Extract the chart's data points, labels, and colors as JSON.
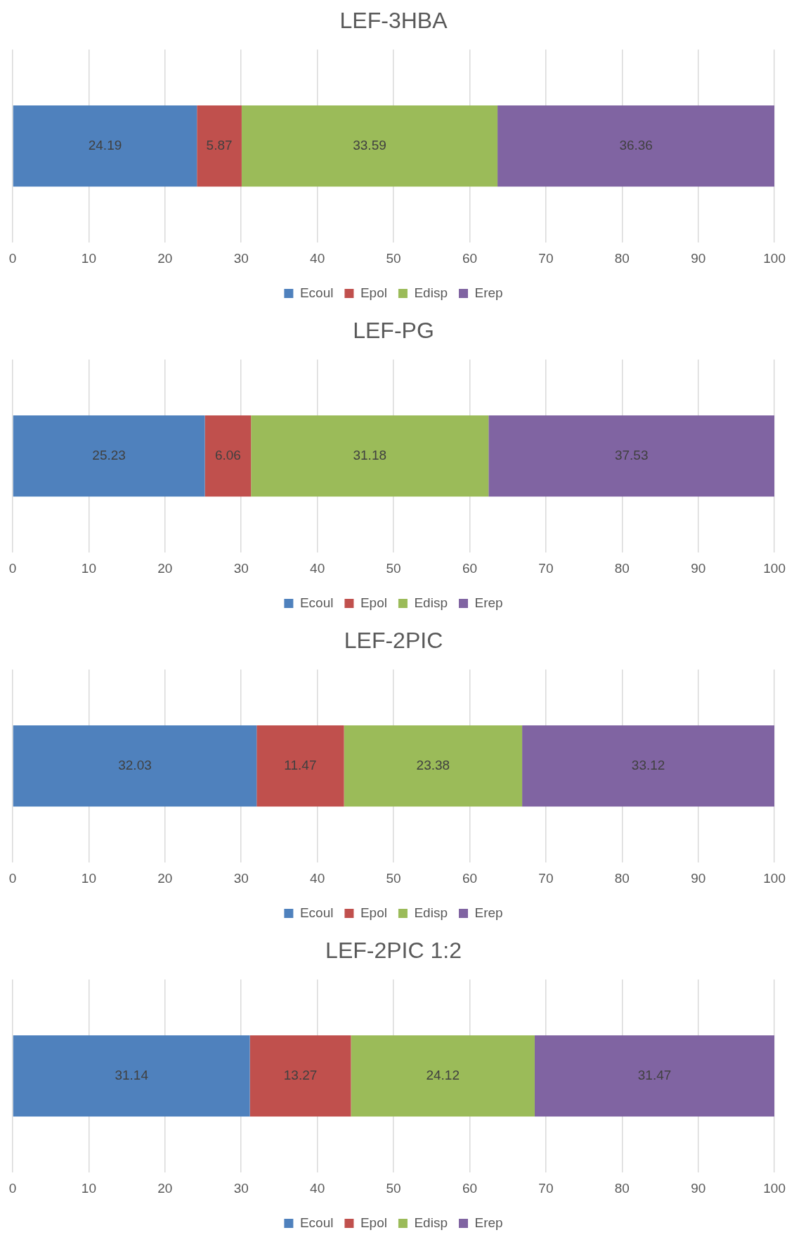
{
  "chart_data": [
    {
      "type": "bar",
      "title": "LEF-3HBA",
      "orientation": "horizontal",
      "stacked": true,
      "categories": [
        null
      ],
      "series": [
        {
          "name": "Ecoul",
          "color": "#4f81bd",
          "values": [
            24.19
          ]
        },
        {
          "name": "Epol",
          "color": "#c0504d",
          "values": [
            5.87
          ]
        },
        {
          "name": "Edisp",
          "color": "#9bbb59",
          "values": [
            33.59
          ]
        },
        {
          "name": "Erep",
          "color": "#8064a2",
          "values": [
            36.36
          ]
        }
      ],
      "xlim": [
        0,
        100
      ],
      "xticks": [
        0,
        10,
        20,
        30,
        40,
        50,
        60,
        70,
        80,
        90,
        100
      ],
      "grid": "x",
      "legend": "bottom",
      "data_labels": true
    },
    {
      "type": "bar",
      "title": "LEF-PG",
      "orientation": "horizontal",
      "stacked": true,
      "categories": [
        null
      ],
      "series": [
        {
          "name": "Ecoul",
          "color": "#4f81bd",
          "values": [
            25.23
          ]
        },
        {
          "name": "Epol",
          "color": "#c0504d",
          "values": [
            6.06
          ]
        },
        {
          "name": "Edisp",
          "color": "#9bbb59",
          "values": [
            31.18
          ]
        },
        {
          "name": "Erep",
          "color": "#8064a2",
          "values": [
            37.53
          ]
        }
      ],
      "xlim": [
        0,
        100
      ],
      "xticks": [
        0,
        10,
        20,
        30,
        40,
        50,
        60,
        70,
        80,
        90,
        100
      ],
      "grid": "x",
      "legend": "bottom",
      "data_labels": true
    },
    {
      "type": "bar",
      "title": "LEF-2PIC",
      "orientation": "horizontal",
      "stacked": true,
      "categories": [
        null
      ],
      "series": [
        {
          "name": "Ecoul",
          "color": "#4f81bd",
          "values": [
            32.03
          ]
        },
        {
          "name": "Epol",
          "color": "#c0504d",
          "values": [
            11.47
          ]
        },
        {
          "name": "Edisp",
          "color": "#9bbb59",
          "values": [
            23.38
          ]
        },
        {
          "name": "Erep",
          "color": "#8064a2",
          "values": [
            33.12
          ]
        }
      ],
      "xlim": [
        0,
        100
      ],
      "xticks": [
        0,
        10,
        20,
        30,
        40,
        50,
        60,
        70,
        80,
        90,
        100
      ],
      "grid": "x",
      "legend": "bottom",
      "data_labels": true
    },
    {
      "type": "bar",
      "title": "LEF-2PIC 1:2",
      "orientation": "horizontal",
      "stacked": true,
      "categories": [
        null
      ],
      "series": [
        {
          "name": "Ecoul",
          "color": "#4f81bd",
          "values": [
            31.14
          ]
        },
        {
          "name": "Epol",
          "color": "#c0504d",
          "values": [
            13.27
          ]
        },
        {
          "name": "Edisp",
          "color": "#9bbb59",
          "values": [
            24.12
          ]
        },
        {
          "name": "Erep",
          "color": "#8064a2",
          "values": [
            31.47
          ]
        }
      ],
      "xlim": [
        0,
        100
      ],
      "xticks": [
        0,
        10,
        20,
        30,
        40,
        50,
        60,
        70,
        80,
        90,
        100
      ],
      "grid": "x",
      "legend": "bottom",
      "data_labels": true
    }
  ]
}
